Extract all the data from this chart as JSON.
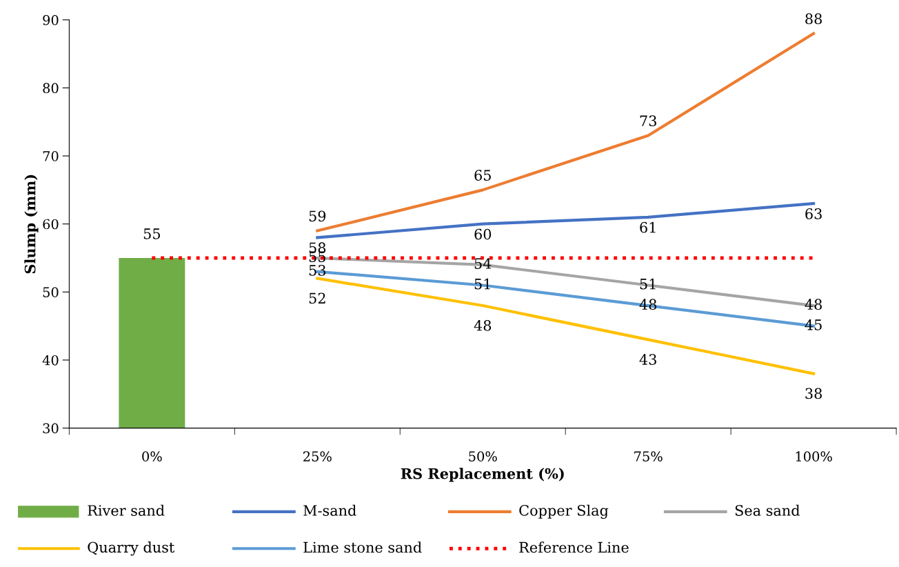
{
  "chart_data": {
    "type": "line",
    "xlabel": "RS Replacement (%)",
    "ylabel": "Slump (mm)",
    "categories": [
      "0%",
      "25%",
      "50%",
      "75%",
      "100%"
    ],
    "ylim": [
      30,
      90
    ],
    "yticks": [
      30,
      40,
      50,
      60,
      70,
      80,
      90
    ],
    "grid": false,
    "legend": "bottom",
    "marker": "none",
    "series": [
      {
        "name": "River sand",
        "type": "bar",
        "color": "#70ad47",
        "values": [
          55,
          null,
          null,
          null,
          null
        ],
        "value_labels": [
          "55",
          null,
          null,
          null,
          null
        ]
      },
      {
        "name": "M-sand",
        "color": "#4472c4",
        "values": [
          null,
          58,
          60,
          61,
          63
        ],
        "value_labels": [
          null,
          "58",
          "60",
          "61",
          "63"
        ]
      },
      {
        "name": "Copper Slag",
        "color": "#ed7d31",
        "values": [
          null,
          59,
          65,
          73,
          88
        ],
        "value_labels": [
          null,
          "59",
          "65",
          "73",
          "88"
        ]
      },
      {
        "name": "Sea sand",
        "color": "#a5a5a5",
        "values": [
          null,
          55,
          54,
          51,
          48
        ],
        "value_labels": [
          null,
          "55",
          "54",
          "51",
          "48"
        ]
      },
      {
        "name": "Quarry dust",
        "color": "#ffc000",
        "values": [
          null,
          52,
          48,
          43,
          38
        ],
        "value_labels": [
          null,
          "52",
          "48",
          "43",
          "38"
        ]
      },
      {
        "name": "Lime stone sand",
        "color": "#5b9bd5",
        "values": [
          null,
          53,
          51,
          48,
          45
        ],
        "value_labels": [
          null,
          "53",
          "51",
          "48",
          "45"
        ]
      },
      {
        "name": "Reference Line",
        "color": "#ff0000",
        "line_style": "dotted",
        "values": [
          55,
          55,
          55,
          55,
          55
        ]
      }
    ]
  }
}
